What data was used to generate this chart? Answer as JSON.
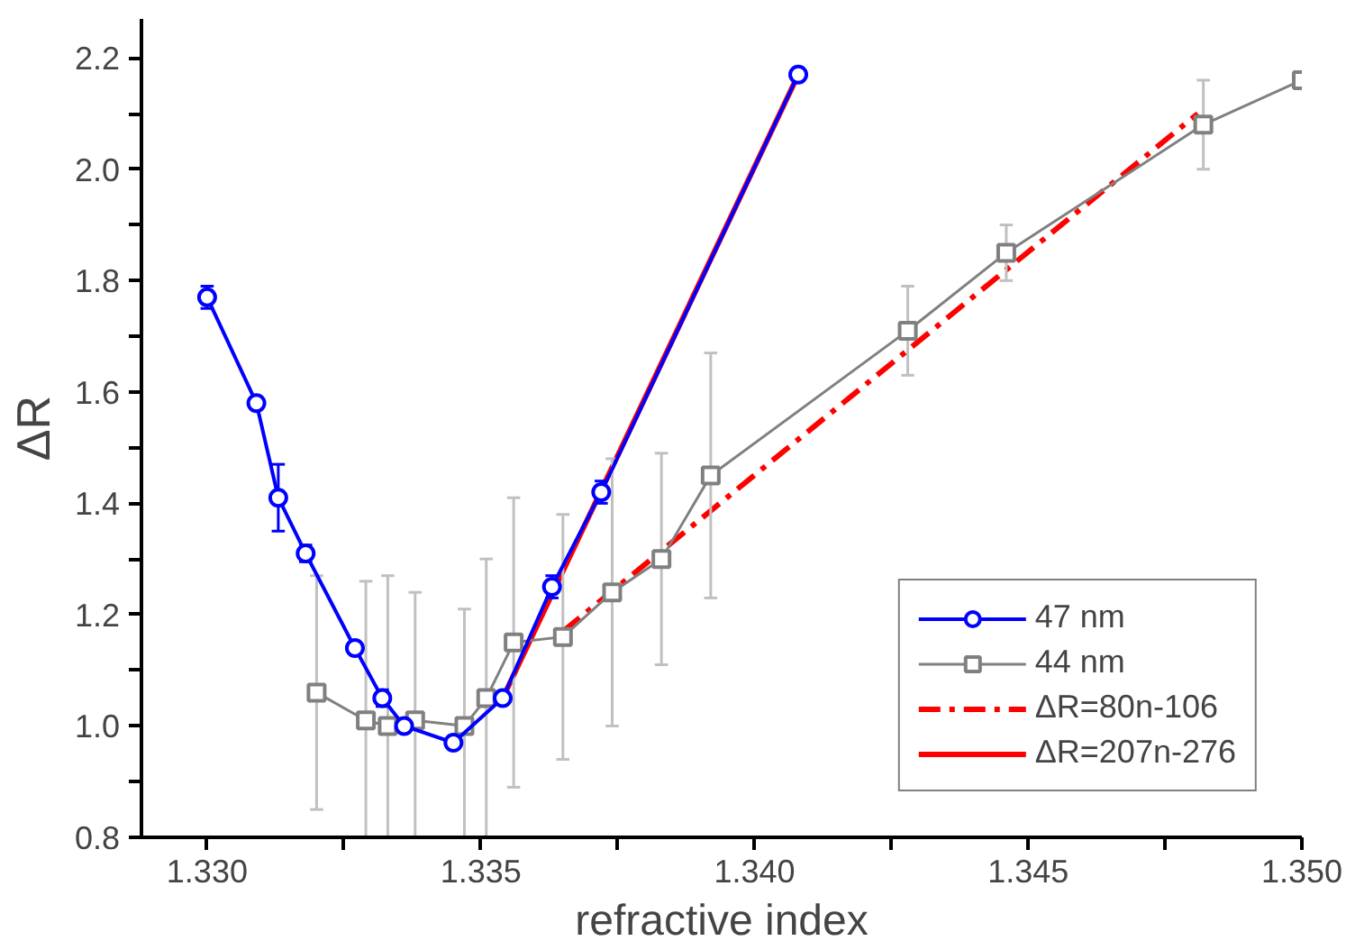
{
  "chart_data": {
    "type": "line",
    "xlabel": "refractive index",
    "ylabel": "ΔR",
    "xlim": [
      1.3288,
      1.35
    ],
    "ylim": [
      0.8,
      2.27
    ],
    "xticks": [
      {
        "value": 1.33,
        "label": "1.330"
      },
      {
        "value": 1.3325,
        "label": null
      },
      {
        "value": 1.335,
        "label": "1.335"
      },
      {
        "value": 1.3375,
        "label": null
      },
      {
        "value": 1.34,
        "label": "1.340"
      },
      {
        "value": 1.3425,
        "label": null
      },
      {
        "value": 1.345,
        "label": "1.345"
      },
      {
        "value": 1.3475,
        "label": null
      },
      {
        "value": 1.35,
        "label": "1.350"
      }
    ],
    "yticks": [
      {
        "value": 0.8,
        "label": "0.8"
      },
      {
        "value": 0.9,
        "label": null
      },
      {
        "value": 1.0,
        "label": "1.0"
      },
      {
        "value": 1.1,
        "label": null
      },
      {
        "value": 1.2,
        "label": "1.2"
      },
      {
        "value": 1.3,
        "label": null
      },
      {
        "value": 1.4,
        "label": "1.4"
      },
      {
        "value": 1.5,
        "label": null
      },
      {
        "value": 1.6,
        "label": "1.6"
      },
      {
        "value": 1.7,
        "label": null
      },
      {
        "value": 1.8,
        "label": "1.8"
      },
      {
        "value": 1.9,
        "label": null
      },
      {
        "value": 2.0,
        "label": "2.0"
      },
      {
        "value": 2.1,
        "label": null
      },
      {
        "value": 2.2,
        "label": "2.2"
      }
    ],
    "grid": false,
    "legend": "bottom right",
    "series": [
      {
        "name": "47 nm",
        "color": "#0000ff",
        "marker": "circle",
        "line_style": "solid",
        "x": [
          1.33,
          1.3309,
          1.3313,
          1.3318,
          1.3327,
          1.3332,
          1.3336,
          1.3345,
          1.3354,
          1.3363,
          1.3372,
          1.3408
        ],
        "values": [
          1.77,
          1.58,
          1.41,
          1.31,
          1.14,
          1.05,
          1.0,
          0.97,
          1.05,
          1.25,
          1.42,
          2.17
        ],
        "errors": [
          0.02,
          0.01,
          0.06,
          0.015,
          0.01,
          0.015,
          0.01,
          0.01,
          0.01,
          0.02,
          0.02,
          0.01
        ]
      },
      {
        "name": "44 nm",
        "color": "#808080",
        "marker": "square",
        "line_style": "solid",
        "x": [
          1.332,
          1.3329,
          1.3333,
          1.3338,
          1.3347,
          1.3351,
          1.3356,
          1.3365,
          1.3374,
          1.3383,
          1.3392,
          1.3428,
          1.3446,
          1.3482,
          1.35
        ],
        "values": [
          1.06,
          1.01,
          1.0,
          1.01,
          1.0,
          1.05,
          1.15,
          1.16,
          1.24,
          1.3,
          1.45,
          1.71,
          1.85,
          2.08,
          2.16
        ],
        "errors": [
          0.21,
          0.25,
          0.27,
          0.23,
          0.21,
          0.25,
          0.26,
          0.22,
          0.24,
          0.19,
          0.22,
          0.08,
          0.05,
          0.08,
          null
        ]
      },
      {
        "name": "ΔR=80n-106",
        "color": "#ff0000",
        "type": "line",
        "marker": "none",
        "line_style": "dashdot",
        "x": [
          1.3365,
          1.3481
        ],
        "values": [
          1.17,
          2.1
        ]
      },
      {
        "name": "ΔR=207n-276",
        "color": "#ff0000",
        "type": "line",
        "marker": "none",
        "line_style": "solid",
        "x": [
          1.3354,
          1.3408
        ],
        "values": [
          1.05,
          2.17
        ]
      }
    ]
  }
}
